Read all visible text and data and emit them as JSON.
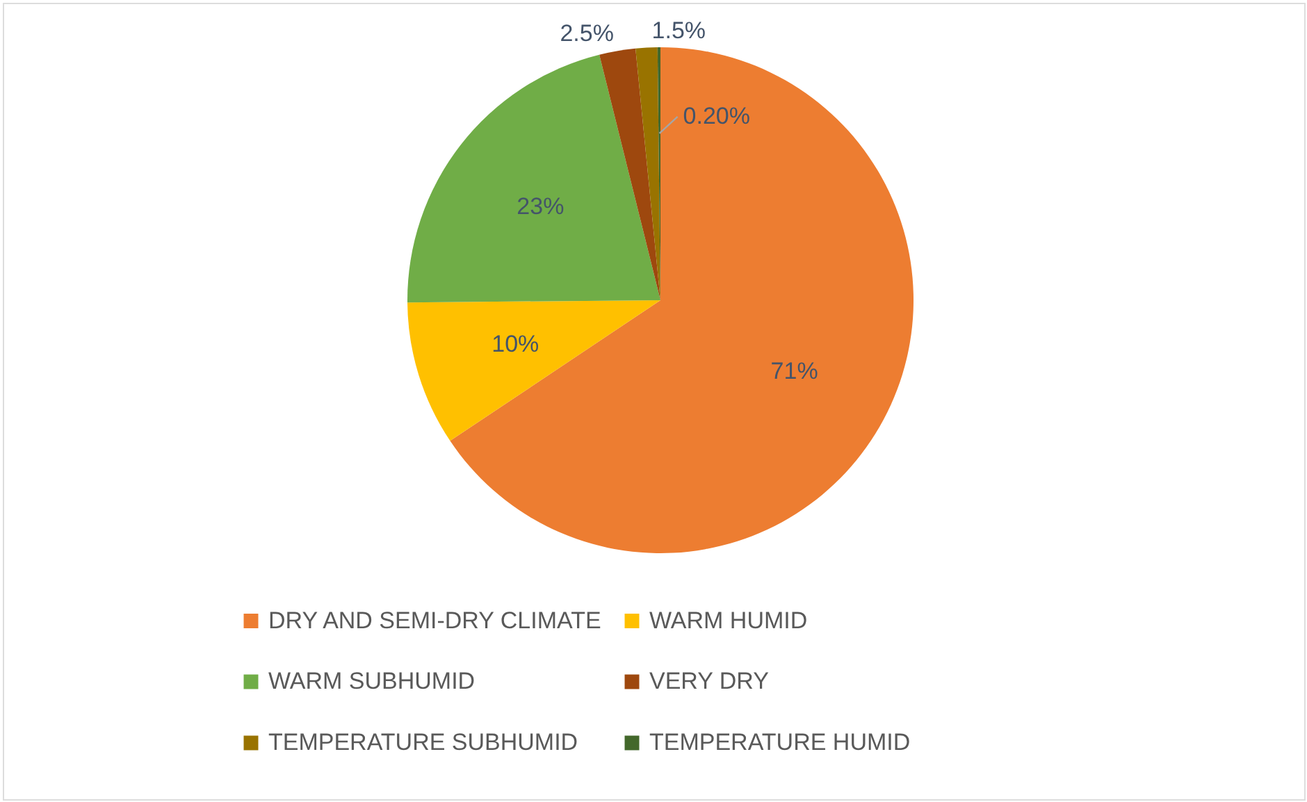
{
  "chart_data": {
    "type": "pie",
    "categories": [
      "DRY AND SEMI-DRY CLIMATE",
      "WARM HUMID",
      "WARM SUBHUMID",
      "VERY DRY",
      "TEMPERATURE SUBHUMID",
      "TEMPERATURE HUMID"
    ],
    "values": [
      71,
      10,
      23,
      2.5,
      1.5,
      0.2
    ],
    "colors": [
      "#ed7d31",
      "#ffc000",
      "#70ad47",
      "#9e480e",
      "#997300",
      "#43682b"
    ],
    "value_labels": [
      "71%",
      "10%",
      "23%",
      "2.5%",
      "1.5%",
      "0.20%"
    ],
    "legend": "bottom"
  }
}
